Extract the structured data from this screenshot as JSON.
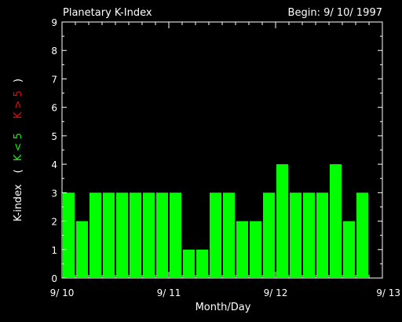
{
  "chart_data": {
    "type": "bar",
    "title": "Planetary K-Index",
    "begin_label": "Begin: 9/ 10/ 1997",
    "xlabel": "Month/Day",
    "ylabel": {
      "prefix": "K-index",
      "open_paren": "(",
      "low_part": "K < 5",
      "high_part": "K > 5",
      "close_paren": ")"
    },
    "ylim": [
      0,
      9
    ],
    "yticks": [
      "0",
      "1",
      "2",
      "3",
      "4",
      "5",
      "6",
      "7",
      "8",
      "9"
    ],
    "xlim": [
      0,
      24
    ],
    "xticks": [
      {
        "x": 0,
        "label": "9/ 10"
      },
      {
        "x": 8,
        "label": "9/ 11"
      },
      {
        "x": 16,
        "label": "9/ 12"
      },
      {
        "x": 24,
        "label": "9/ 13"
      }
    ],
    "values": [
      3,
      2,
      3,
      3,
      3,
      3,
      3,
      3,
      3,
      1,
      1,
      3,
      3,
      2,
      2,
      3,
      4,
      3,
      3,
      3,
      4,
      2,
      3
    ],
    "colors": {
      "bar": "#00ff00",
      "low_label": "#00ff00",
      "high_label": "#ff0000",
      "axes": "#ffffff",
      "background": "#000000"
    }
  }
}
